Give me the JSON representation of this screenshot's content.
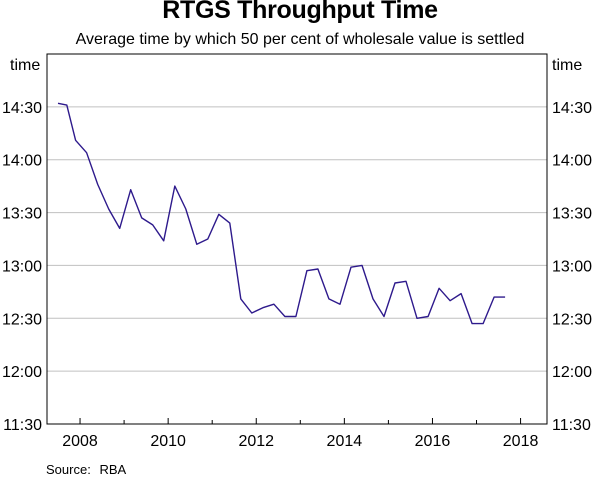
{
  "chart_data": {
    "type": "line",
    "title": "RTGS Throughput Time",
    "subtitle": "Average time by which 50 per cent of wholesale value is settled",
    "ylabel_left": "time",
    "ylabel_right": "time",
    "source_label": "Source:",
    "source_value": "RBA",
    "y_ticks": [
      "11:30",
      "12:00",
      "12:30",
      "13:00",
      "13:30",
      "14:00",
      "14:30"
    ],
    "y_tick_minutes": [
      690,
      720,
      750,
      780,
      810,
      840,
      870
    ],
    "ylim_minutes": [
      690,
      900
    ],
    "x_ticks": [
      "2008",
      "2010",
      "2012",
      "2014",
      "2016",
      "2018"
    ],
    "x_tick_years": [
      2008,
      2010,
      2012,
      2014,
      2016,
      2018
    ],
    "xlim": [
      2007.25,
      2018.6
    ],
    "series": [
      {
        "name": "RTGS throughput time",
        "color": "#2e1a8c",
        "x": [
          2007.5,
          2007.7,
          2007.9,
          2008.15,
          2008.4,
          2008.65,
          2008.9,
          2009.15,
          2009.4,
          2009.65,
          2009.9,
          2010.15,
          2010.4,
          2010.65,
          2010.9,
          2011.15,
          2011.4,
          2011.65,
          2011.9,
          2012.15,
          2012.4,
          2012.65,
          2012.9,
          2013.15,
          2013.4,
          2013.65,
          2013.9,
          2014.15,
          2014.4,
          2014.65,
          2014.9,
          2015.15,
          2015.4,
          2015.65,
          2015.9,
          2016.15,
          2016.4,
          2016.65,
          2016.9,
          2017.15,
          2017.4,
          2017.65
        ],
        "minutes": [
          872,
          871,
          851,
          844,
          826,
          812,
          801,
          823,
          807,
          803,
          794,
          825,
          812,
          792,
          795,
          809,
          804,
          761,
          753,
          756,
          758,
          751,
          751,
          777,
          778,
          761,
          758,
          779,
          780,
          761,
          751,
          770,
          771,
          750,
          751,
          767,
          760,
          764,
          747,
          747,
          762,
          762
        ]
      }
    ]
  }
}
